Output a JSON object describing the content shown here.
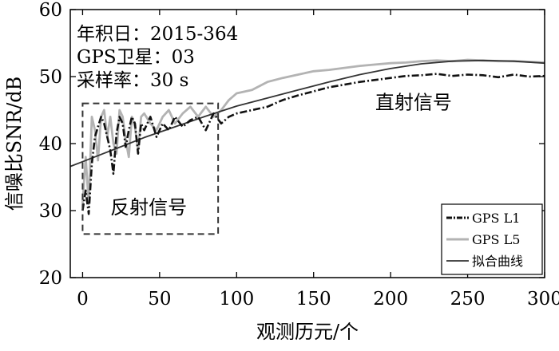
{
  "chart_data": {
    "type": "line",
    "xlabel": "观测历元/个",
    "ylabel": "信噪比SNR/dB",
    "xlim": [
      -8,
      300
    ],
    "ylim": [
      20,
      60
    ],
    "xticks": [
      "0",
      "50",
      "100",
      "150",
      "200",
      "250",
      "300"
    ],
    "yticks": [
      "20",
      "30",
      "40",
      "50",
      "60"
    ],
    "info_lines": [
      "年积日：2015-364",
      "GPS卫星：03",
      "采样率：30 s"
    ],
    "annotations": [
      {
        "text": "直射信号",
        "x": 190,
        "y": 45.2
      },
      {
        "text": "反射信号",
        "x": 18,
        "y": 29.5
      }
    ],
    "reflect_box": {
      "x": [
        0,
        88
      ],
      "y": [
        26.5,
        46
      ]
    },
    "legend_position": "bottom-right",
    "series": [
      {
        "name": "GPS L1",
        "style": "dash-dot",
        "color": "#111111",
        "x": [
          0,
          2,
          4,
          6,
          8,
          10,
          12,
          14,
          16,
          18,
          20,
          22,
          24,
          26,
          28,
          30,
          32,
          34,
          36,
          38,
          40,
          44,
          48,
          52,
          56,
          60,
          65,
          70,
          75,
          80,
          85,
          90,
          95,
          100,
          110,
          120,
          130,
          140,
          150,
          160,
          170,
          180,
          190,
          200,
          210,
          220,
          230,
          240,
          250,
          260,
          270,
          280,
          290,
          300
        ],
        "y": [
          30,
          33,
          29.5,
          37,
          41,
          42.5,
          44,
          43,
          41,
          39,
          35.5,
          41.5,
          44,
          43,
          39.5,
          42,
          44,
          43,
          38.5,
          43,
          42,
          44,
          41,
          43,
          42,
          44,
          42.5,
          43.5,
          44,
          42,
          44.5,
          43,
          44,
          44.5,
          45,
          45.5,
          46.5,
          47.2,
          47.8,
          48.4,
          48.8,
          49.2,
          49.5,
          49.8,
          50.1,
          50.2,
          50.4,
          50.1,
          50.3,
          50.2,
          49.9,
          50.3,
          50,
          50.1
        ]
      },
      {
        "name": "GPS L5",
        "style": "solid",
        "color": "#b3b3b3",
        "x": [
          0,
          2,
          4,
          6,
          8,
          10,
          12,
          14,
          16,
          18,
          20,
          22,
          24,
          26,
          28,
          30,
          32,
          34,
          36,
          38,
          40,
          44,
          48,
          52,
          56,
          60,
          65,
          70,
          75,
          80,
          85,
          90,
          95,
          100,
          110,
          120,
          130,
          140,
          150,
          160,
          170,
          180,
          190,
          200,
          210,
          220,
          230,
          240,
          250,
          260,
          270,
          280,
          290,
          300
        ],
        "y": [
          31,
          38,
          31,
          44,
          42,
          37.5,
          44,
          45,
          41,
          44,
          40,
          38.5,
          45,
          44,
          40.5,
          38,
          44,
          42.5,
          39,
          44,
          44.5,
          43,
          42,
          44,
          45,
          43,
          44.5,
          45.5,
          44,
          45.5,
          44,
          45,
          46.5,
          47.5,
          48,
          49.2,
          49.8,
          50.3,
          50.8,
          51,
          51.3,
          51.6,
          51.8,
          52,
          52.1,
          52.3,
          52.4,
          52.3,
          52.5,
          52.4,
          52.3,
          52.3,
          52.2,
          52.1
        ]
      },
      {
        "name": "拟合曲线",
        "style": "solid",
        "color": "#333333",
        "x": [
          -8,
          0,
          20,
          40,
          60,
          80,
          100,
          120,
          140,
          160,
          180,
          200,
          220,
          240,
          260,
          280,
          300
        ],
        "y": [
          36.6,
          37.3,
          39.1,
          40.9,
          42.5,
          44.1,
          45.6,
          46.8,
          48.0,
          49.2,
          50.3,
          51.2,
          51.9,
          52.3,
          52.4,
          52.3,
          52.0
        ]
      }
    ]
  }
}
